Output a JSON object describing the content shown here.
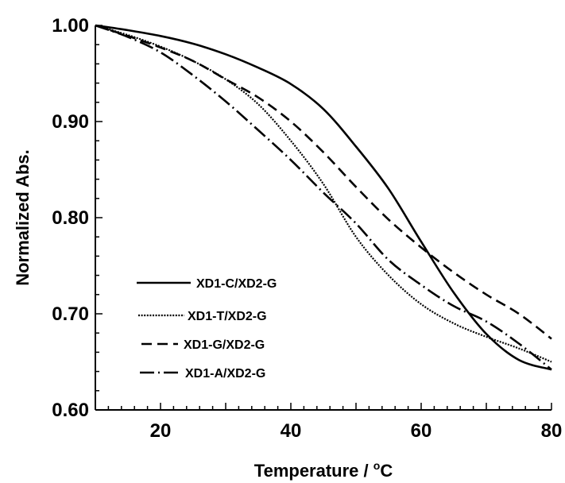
{
  "chart_data": {
    "type": "line",
    "title": "",
    "xlabel": {
      "text": "Temperature / ",
      "sup": "o",
      "unit": "C"
    },
    "ylabel": "Normalized Abs.",
    "xlim": [
      10,
      80
    ],
    "ylim": [
      0.6,
      1.0
    ],
    "xticks": [
      "20",
      "40",
      "60",
      "80"
    ],
    "yticks": [
      "1.00",
      "0.90",
      "0.80",
      "0.70",
      "0.60"
    ],
    "grid": false,
    "legend_position": "lower-left",
    "series": [
      {
        "name": "XD1-C/XD2-G",
        "dash": "solid",
        "x": [
          10,
          15,
          20,
          25,
          30,
          35,
          40,
          45,
          50,
          55,
          60,
          65,
          70,
          75,
          80
        ],
        "y": [
          1.0,
          0.995,
          0.989,
          0.981,
          0.97,
          0.956,
          0.939,
          0.913,
          0.874,
          0.83,
          0.775,
          0.722,
          0.679,
          0.652,
          0.642
        ]
      },
      {
        "name": "XD1-T/XD2-G",
        "dash": "dotted",
        "x": [
          10,
          15,
          20,
          25,
          30,
          35,
          40,
          45,
          50,
          55,
          60,
          65,
          70,
          75,
          80
        ],
        "y": [
          1.0,
          0.99,
          0.978,
          0.963,
          0.944,
          0.918,
          0.88,
          0.835,
          0.78,
          0.74,
          0.71,
          0.69,
          0.676,
          0.664,
          0.65
        ]
      },
      {
        "name": "XD1-G/XD2-G",
        "dash": "dashed",
        "x": [
          10,
          15,
          20,
          25,
          30,
          35,
          40,
          45,
          50,
          55,
          60,
          65,
          70,
          75,
          80
        ],
        "y": [
          1.0,
          0.989,
          0.977,
          0.963,
          0.944,
          0.925,
          0.9,
          0.868,
          0.832,
          0.798,
          0.769,
          0.743,
          0.72,
          0.7,
          0.674
        ]
      },
      {
        "name": "XD1-A/XD2-G",
        "dash": "dash-dot",
        "x": [
          10,
          15,
          20,
          25,
          30,
          35,
          40,
          45,
          50,
          55,
          60,
          65,
          70,
          75,
          80
        ],
        "y": [
          1.0,
          0.988,
          0.972,
          0.948,
          0.921,
          0.891,
          0.86,
          0.826,
          0.794,
          0.756,
          0.73,
          0.708,
          0.692,
          0.669,
          0.642
        ]
      }
    ]
  }
}
